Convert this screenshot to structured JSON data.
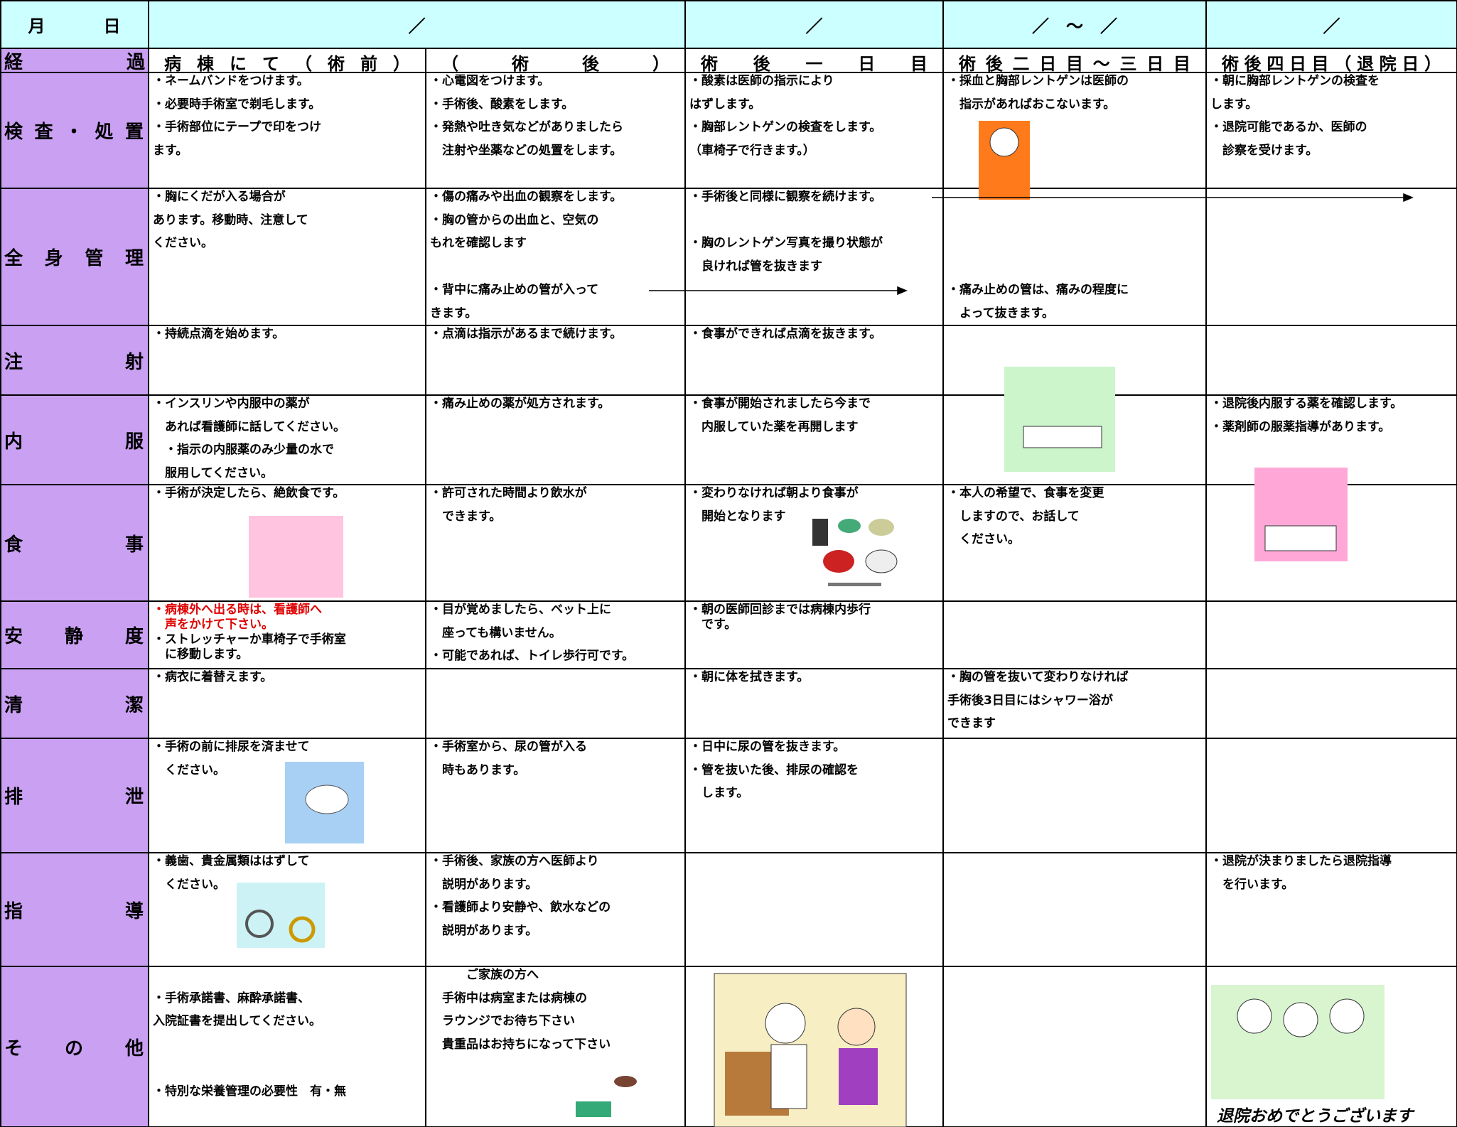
{
  "header": {
    "date_label": "月日",
    "dates": [
      "／",
      "／",
      "／　～　／",
      "／"
    ]
  },
  "progress": {
    "label": "経過",
    "phases": [
      "病棟にて（術前）",
      "（術後）",
      "術後一日目",
      "術後二日目～三日目",
      "術後四日目（退院日）"
    ]
  },
  "rows": [
    {
      "label": "検査・処置",
      "cells": [
        [
          [
            "・ネームバンドをつけます。",
            "・必要時手術室で剃毛します。",
            "・手術部位にテープで印をつけ",
            "ます。"
          ]
        ],
        [
          [
            "・心電図をつけます。",
            "・手術後、酸素をします。",
            "・発熱や吐き気などがありましたら",
            "　注射や坐薬などの処置をします。"
          ]
        ],
        [
          [
            "・酸素は医師の指示により",
            "はずします。",
            "・胸部レントゲンの検査をします。",
            "（車椅子で行きます。）"
          ]
        ],
        [
          [
            "・採血と胸部レントゲンは医師の",
            "　指示があればおこないます。"
          ]
        ],
        [
          [
            "・朝に胸部レントゲンの検査を",
            "します。",
            "・退院可能であるか、医師の",
            "　診察を受けます。"
          ]
        ]
      ]
    },
    {
      "label": "全身管理",
      "cells": [
        [
          [
            "・胸にくだが入る場合が",
            "あります。移動時、注意して",
            "ください。"
          ]
        ],
        [
          [
            "・傷の痛みや出血の観察をします。",
            "・胸の管からの出血と、空気の",
            "もれを確認します"
          ],
          [
            "・背中に痛み止めの管が入って",
            "きます。"
          ]
        ],
        [
          [
            "・手術後と同様に観察を続けます。"
          ],
          [
            "・胸のレントゲン写真を撮り状態が",
            "　良ければ管を抜きます"
          ]
        ],
        [
          [
            "・痛み止めの管は、痛みの程度に",
            "　よって抜きます。"
          ]
        ],
        []
      ]
    },
    {
      "label": "注射",
      "cells": [
        [
          [
            "・持続点滴を始めます。"
          ]
        ],
        [
          [
            "・点滴は指示があるまで続けます。"
          ]
        ],
        [
          [
            "・食事ができれば点滴を抜きます。"
          ]
        ],
        [],
        []
      ]
    },
    {
      "label": "内服",
      "cells": [
        [
          [
            "・インスリンや内服中の薬が",
            "　あれば看護師に話してください。",
            "　・指示の内服薬のみ少量の水で",
            "　服用してください。"
          ]
        ],
        [
          [
            "・痛み止めの薬が処方されます。"
          ]
        ],
        [
          [
            "・食事が開始されましたら今まで",
            "　内服していた薬を再開します"
          ]
        ],
        [],
        [
          [
            "・退院後内服する薬を確認します。",
            "・薬剤師の服薬指導があります。"
          ]
        ]
      ]
    },
    {
      "label": "食事",
      "cells": [
        [
          [
            "・手術が決定したら、絶飲食です。"
          ]
        ],
        [
          [
            "・許可された時間より飲水が",
            "　できます。"
          ]
        ],
        [
          [
            "・変わりなければ朝より食事が",
            "　開始となります"
          ]
        ],
        [
          [
            "・本人の希望で、食事を変更",
            "　しますので、お話して",
            "　ください。"
          ]
        ],
        []
      ]
    },
    {
      "label": "安静度",
      "cells": [
        [
          [
            "・病棟外へ出る時は、看護師へ",
            "　声をかけて下さい。"
          ],
          [
            "・ストレッチャーか車椅子で手術室",
            "　に移動します。"
          ]
        ],
        [
          [
            "・目が覚めましたら、ベット上に",
            "　座っても構いません。",
            "・可能であれば、トイレ歩行可です。"
          ]
        ],
        [
          [
            "・朝の医師回診までは病棟内歩行",
            "　です。"
          ]
        ],
        [],
        []
      ]
    },
    {
      "label": "清潔",
      "cells": [
        [
          [
            "・病衣に着替えます。"
          ]
        ],
        [],
        [
          [
            "・朝に体を拭きます。"
          ]
        ],
        [
          [
            "・胸の管を抜いて変わりなければ",
            "手術後3日目にはシャワー浴が",
            "できます"
          ]
        ],
        []
      ]
    },
    {
      "label": "排泄",
      "cells": [
        [
          [
            "・手術の前に排尿を済ませて",
            "　ください。"
          ]
        ],
        [
          [
            "・手術室から、尿の管が入る",
            "　時もあります。"
          ]
        ],
        [
          [
            "・日中に尿の管を抜きます。",
            "・管を抜いた後、排尿の確認を",
            "　します。"
          ]
        ],
        [],
        []
      ]
    },
    {
      "label": "指導",
      "cells": [
        [
          [
            "・義歯、貴金属類ははずして",
            "　ください。"
          ]
        ],
        [
          [
            "・手術後、家族の方へ医師より",
            "　説明があります。",
            "・看護師より安静や、飲水などの",
            "　説明があります。"
          ]
        ],
        [],
        [],
        [
          [
            "・退院が決まりましたら退院指導",
            "　を行います。"
          ]
        ]
      ]
    },
    {
      "label": "その他",
      "cells": [
        [
          [
            "・手術承諾書、麻酔承諾書、",
            "入院証書を提出してください。"
          ],
          [
            "・特別な栄養管理の必要性　有・無"
          ]
        ],
        [
          [
            "　　　ご家族の方へ",
            "　手術中は病室または病棟の",
            "　ラウンジでお待ち下さい",
            "　貴重品はお持ちになって下さい"
          ]
        ],
        [],
        [],
        []
      ]
    }
  ],
  "caption": "退院おめでとうございます"
}
